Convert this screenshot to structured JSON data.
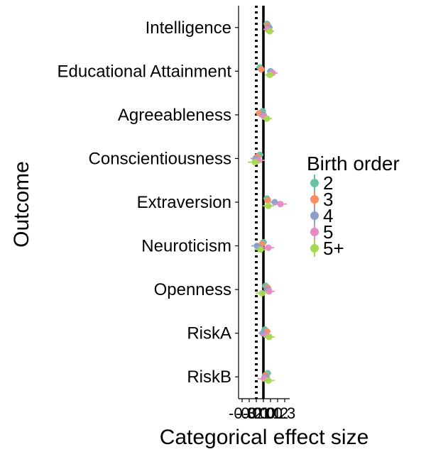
{
  "chart_data": {
    "type": "scatter",
    "xlabel": "Categorical effect size",
    "ylabel": "Outcome",
    "categories": [
      "Intelligence",
      "Educational Attainment",
      "Agreeableness",
      "Conscientiousness",
      "Extraversion",
      "Neuroticism",
      "Openness",
      "RiskA",
      "RiskB"
    ],
    "x_ticks": [
      -0.3,
      -0.2,
      -0.1,
      0.0,
      0.1,
      0.2,
      0.3
    ],
    "x_tick_labels": [
      "-0.3",
      "-0.2",
      "-0.1",
      "0.0",
      "0.1",
      "0.2",
      "0.3"
    ],
    "xlim": [
      -0.35,
      0.37
    ],
    "reference_lines": [
      {
        "x": 0.0,
        "style": "solid"
      },
      {
        "x": -0.1,
        "style": "dotted"
      }
    ],
    "legend": {
      "title": "Birth order",
      "placement": "right"
    },
    "colors": {
      "2": "#66c2a5",
      "3": "#fc8d62",
      "4": "#8da0cb",
      "5": "#e78ac3",
      "5+": "#a6d854"
    },
    "series": [
      {
        "name": "2",
        "values": [
          0.05,
          -0.05,
          -0.01,
          -0.05,
          0.05,
          0.0,
          0.03,
          0.02,
          0.06
        ],
        "ci": [
          [
            0.0,
            0.1
          ],
          [
            -0.1,
            0.0
          ],
          [
            -0.05,
            0.03
          ],
          [
            -0.1,
            0.0
          ],
          [
            0.0,
            0.1
          ],
          [
            -0.05,
            0.05
          ],
          [
            -0.02,
            0.08
          ],
          [
            -0.03,
            0.07
          ],
          [
            0.01,
            0.11
          ]
        ]
      },
      {
        "name": "3",
        "values": [
          0.06,
          -0.03,
          -0.06,
          -0.09,
          0.06,
          -0.02,
          0.06,
          0.05,
          0.03
        ],
        "ci": [
          [
            0.02,
            0.1
          ],
          [
            -0.07,
            0.01
          ],
          [
            -0.11,
            -0.01
          ],
          [
            -0.15,
            -0.03
          ],
          [
            0.01,
            0.11
          ],
          [
            -0.07,
            0.03
          ],
          [
            0.01,
            0.11
          ],
          [
            0.0,
            0.1
          ],
          [
            -0.02,
            0.08
          ]
        ]
      },
      {
        "name": "4",
        "values": [
          0.08,
          0.1,
          0.0,
          -0.11,
          0.16,
          -0.09,
          0.06,
          -0.01,
          0.03
        ],
        "ci": [
          [
            0.03,
            0.13
          ],
          [
            0.05,
            0.15
          ],
          [
            -0.05,
            0.05
          ],
          [
            -0.18,
            -0.04
          ],
          [
            0.1,
            0.22
          ],
          [
            -0.17,
            -0.01
          ],
          [
            0.0,
            0.12
          ],
          [
            -0.07,
            0.05
          ],
          [
            -0.03,
            0.09
          ]
        ]
      },
      {
        "name": "5",
        "values": [
          0.06,
          0.13,
          0.01,
          -0.07,
          0.24,
          0.07,
          0.08,
          0.04,
          0.01
        ],
        "ci": [
          [
            0.0,
            0.12
          ],
          [
            0.06,
            0.2
          ],
          [
            -0.06,
            0.08
          ],
          [
            -0.16,
            0.02
          ],
          [
            0.15,
            0.33
          ],
          [
            -0.01,
            0.15
          ],
          [
            0.0,
            0.16
          ],
          [
            -0.04,
            0.12
          ],
          [
            -0.08,
            0.1
          ]
        ]
      },
      {
        "name": "5+",
        "values": [
          0.09,
          0.09,
          0.05,
          -0.12,
          0.07,
          -0.04,
          -0.02,
          0.08,
          0.07
        ],
        "ci": [
          [
            0.03,
            0.15
          ],
          [
            0.02,
            0.16
          ],
          [
            -0.02,
            0.12
          ],
          [
            -0.22,
            -0.02
          ],
          [
            -0.01,
            0.15
          ],
          [
            -0.13,
            0.05
          ],
          [
            -0.11,
            0.07
          ],
          [
            0.0,
            0.16
          ],
          [
            -0.02,
            0.16
          ]
        ]
      }
    ]
  }
}
